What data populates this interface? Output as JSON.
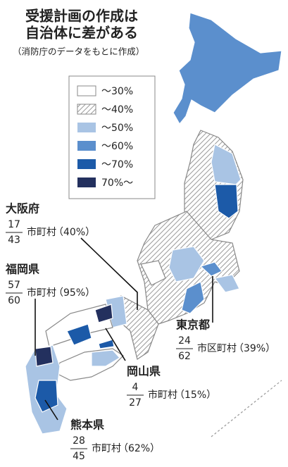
{
  "header": {
    "title_lines": [
      "受援計画の作成は",
      "自治体に差がある"
    ],
    "source": "（消防庁のデータをもとに作成）"
  },
  "legend": [
    "～30%",
    "～40%",
    "～50%",
    "～60%",
    "～70%",
    "70%～"
  ],
  "callouts": [
    {
      "name": "大阪府",
      "numerator": 17,
      "denominator": 43,
      "unit": "市町村",
      "rate": "（40%）"
    },
    {
      "name": "福岡県",
      "numerator": 57,
      "denominator": 60,
      "unit": "市町村",
      "rate": "（95%）"
    },
    {
      "name": "東京都",
      "numerator": 24,
      "denominator": 62,
      "unit": "市区町村",
      "rate": "（39%）"
    },
    {
      "name": "岡山県",
      "numerator": 4,
      "denominator": 27,
      "unit": "市町村",
      "rate": "（15%）"
    },
    {
      "name": "熊本県",
      "numerator": 28,
      "denominator": 45,
      "unit": "市町村",
      "rate": "（62%）"
    }
  ]
}
